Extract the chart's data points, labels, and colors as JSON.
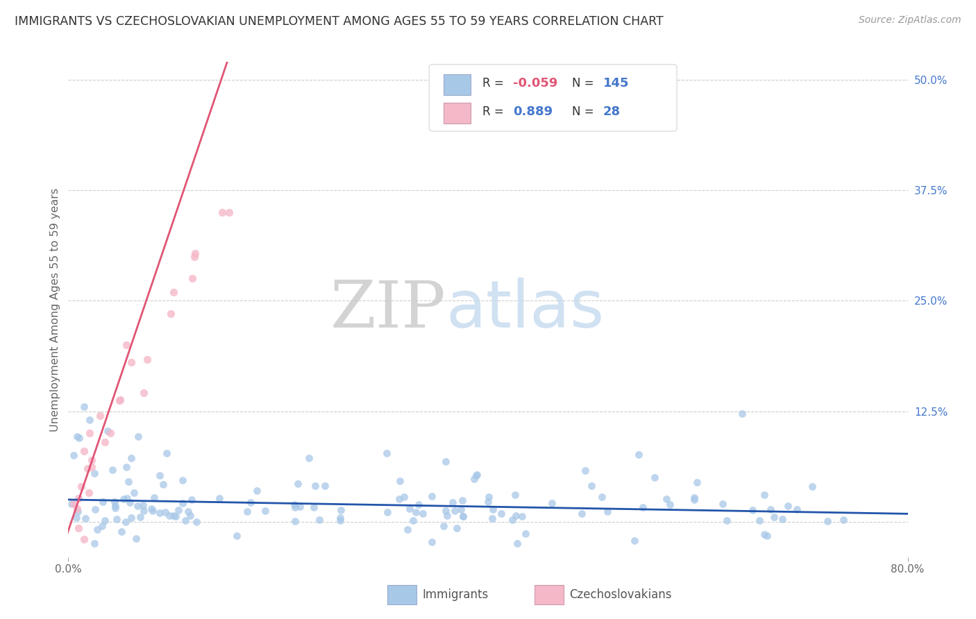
{
  "title": "IMMIGRANTS VS CZECHOSLOVAKIAN UNEMPLOYMENT AMONG AGES 55 TO 59 YEARS CORRELATION CHART",
  "source": "Source: ZipAtlas.com",
  "ylabel": "Unemployment Among Ages 55 to 59 years",
  "xlim": [
    0.0,
    0.8
  ],
  "ylim": [
    -0.04,
    0.52
  ],
  "x_ticks": [
    0.0,
    0.8
  ],
  "x_tick_labels": [
    "0.0%",
    "80.0%"
  ],
  "y_ticks_right": [
    0.5,
    0.375,
    0.25,
    0.125,
    0.0
  ],
  "y_tick_labels_right": [
    "50.0%",
    "37.5%",
    "25.0%",
    "12.5%",
    ""
  ],
  "blue_R": -0.059,
  "blue_N": 145,
  "pink_R": 0.889,
  "pink_N": 28,
  "blue_color": "#a8c8e8",
  "pink_color": "#f5b8c8",
  "blue_line_color": "#2255aa",
  "pink_line_color": "#e05575",
  "legend_label_blue": "Immigrants",
  "legend_label_pink": "Czechoslovakians",
  "background_color": "#ffffff",
  "grid_color": "#cccccc",
  "title_color": "#333333",
  "source_color": "#999999",
  "right_axis_color": "#4477cc"
}
